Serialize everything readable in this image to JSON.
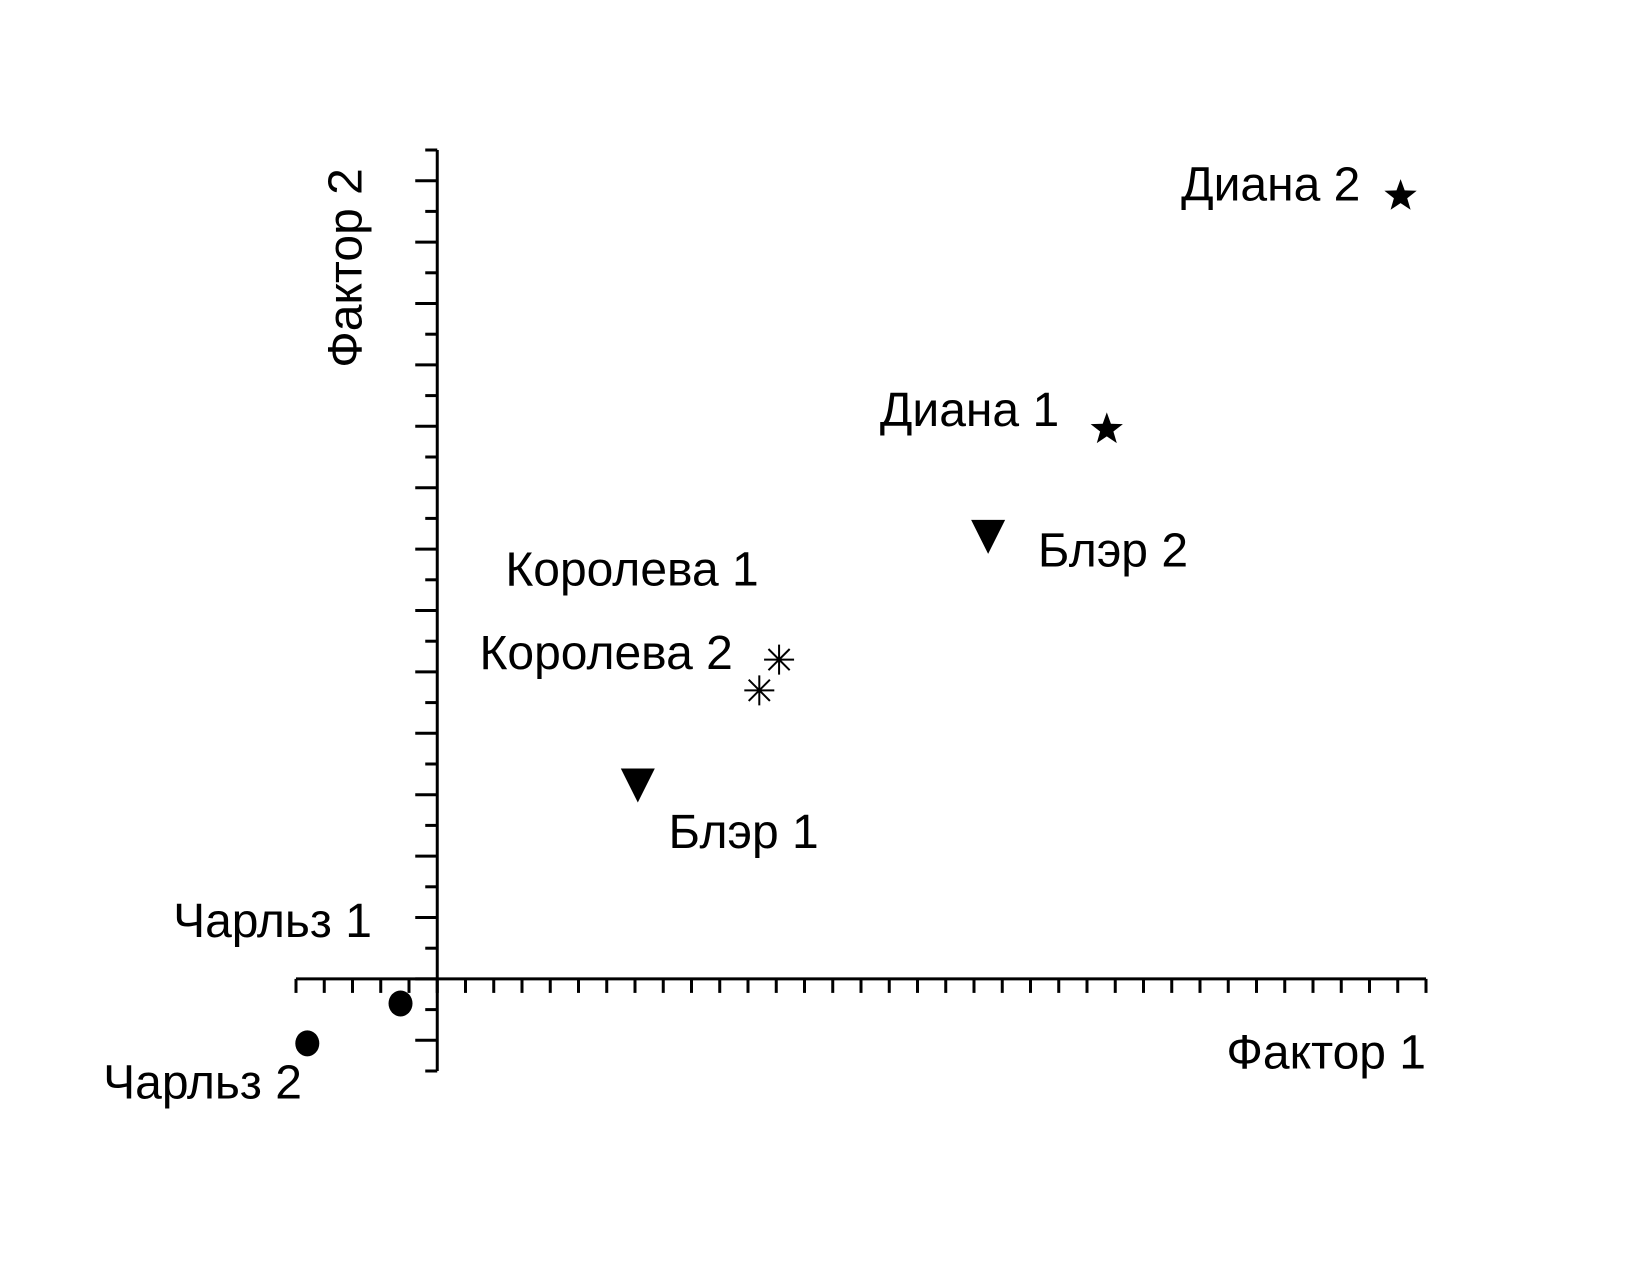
{
  "chart_data": {
    "type": "scatter",
    "x_label": "Фактор 1",
    "y_label": "Фактор 2",
    "xlim": [
      -5,
      35
    ],
    "ylim": [
      -3,
      27
    ],
    "xticks": [
      -5,
      -4,
      -3,
      -2,
      -1,
      0,
      1,
      2,
      3,
      4,
      5,
      6,
      7,
      8,
      9,
      10,
      11,
      12,
      13,
      14,
      15,
      16,
      17,
      18,
      19,
      20,
      21,
      22,
      23,
      24,
      25,
      26,
      27,
      28,
      29,
      30,
      31,
      32,
      33,
      34,
      35
    ],
    "yticks": [
      -3,
      -2,
      -1,
      0,
      1,
      2,
      3,
      4,
      5,
      6,
      7,
      8,
      9,
      10,
      11,
      12,
      13,
      14,
      15,
      16,
      17,
      18,
      19,
      20,
      21,
      22,
      23,
      24,
      25,
      26,
      27
    ],
    "color": "#000000",
    "points": [
      {
        "label": "Диана 2",
        "x": 34.1,
        "y": 25.5,
        "marker": "star"
      },
      {
        "label": "Диана 1",
        "x": 23.7,
        "y": 17.9,
        "marker": "star"
      },
      {
        "label": "Блэр 2",
        "x": 19.5,
        "y": 14.4,
        "marker": "triangle-down"
      },
      {
        "label": "Блэр 1",
        "x": 7.1,
        "y": 6.3,
        "marker": "triangle-down"
      },
      {
        "label": "Королева 1",
        "x": 12.1,
        "y": 10.4,
        "marker": "asterisk"
      },
      {
        "label": "Королева 2",
        "x": 11.4,
        "y": 9.4,
        "marker": "asterisk"
      },
      {
        "label": "Чарльз 1",
        "x": -1.3,
        "y": -0.8,
        "marker": "circle"
      },
      {
        "label": "Чарльз 2",
        "x": -4.6,
        "y": -2.1,
        "marker": "circle"
      }
    ]
  }
}
